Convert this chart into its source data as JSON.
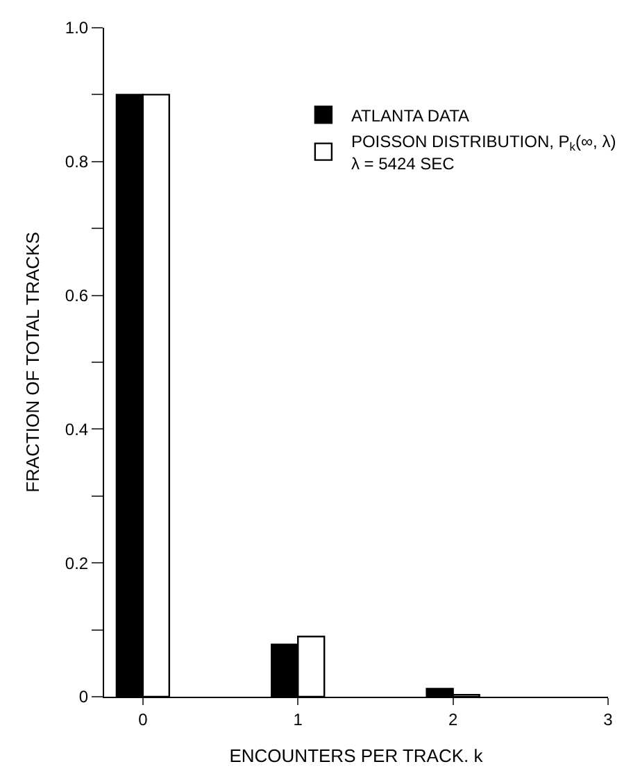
{
  "chart_data": {
    "type": "bar",
    "xlabel": "ENCOUNTERS PER TRACK. k",
    "ylabel": "FRACTION OF TOTAL TRACKS",
    "categories": [
      "0",
      "1",
      "2",
      "3"
    ],
    "series": [
      {
        "name": "ATLANTA DATA",
        "color": "#000000",
        "values": [
          0.9,
          0.078,
          0.012,
          null
        ]
      },
      {
        "name": "POISSON DISTRIBUTION, P$_{k}$(∞, λ)\nλ = 5424 SEC",
        "color": "#ffffff",
        "values": [
          0.9,
          0.09,
          0.003,
          null
        ]
      }
    ],
    "ylim": [
      0,
      1.0
    ],
    "yticks": [
      0,
      {
        "value": 0.1,
        "label": null
      },
      0.2,
      {
        "value": 0.3,
        "label": null
      },
      {
        "value": 0.4,
        "label": "0.4"
      },
      {
        "value": 0.5,
        "label": null
      },
      {
        "value": 0.6,
        "label": "0.6"
      },
      {
        "value": 0.7,
        "label": null
      },
      {
        "value": 0.8,
        "label": "0.8"
      },
      {
        "value": 0.9,
        "label": null
      },
      {
        "value": 1.0,
        "label": "1.0"
      }
    ],
    "legend": "top right"
  }
}
